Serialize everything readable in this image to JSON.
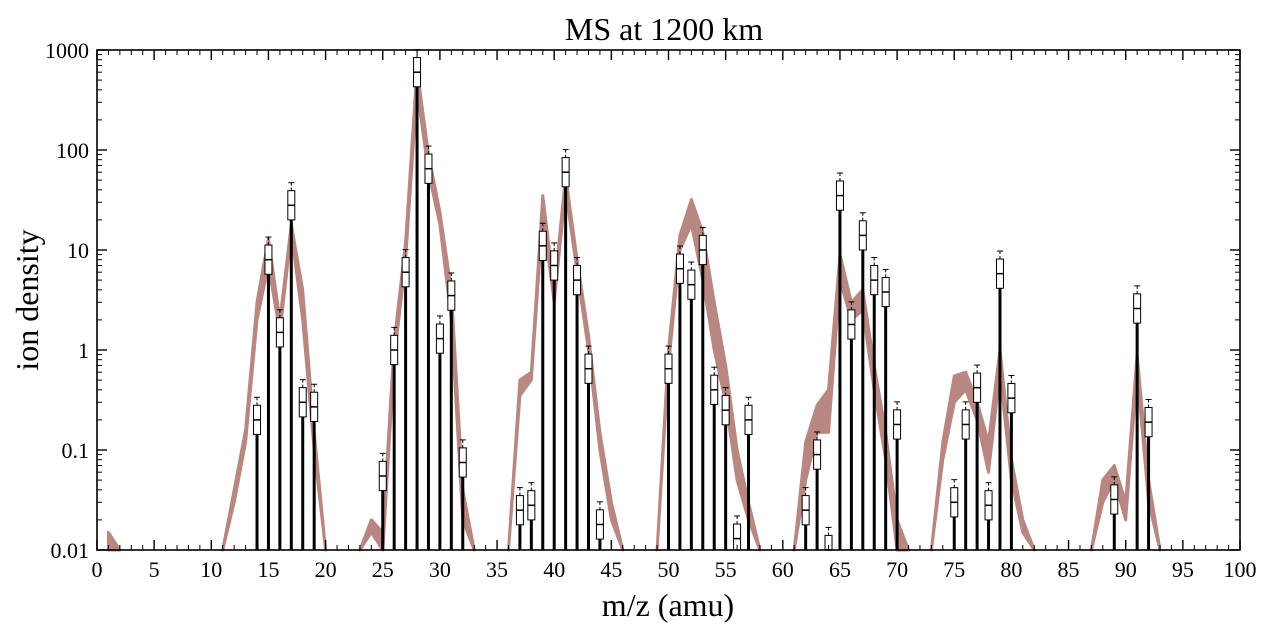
{
  "chart_data": {
    "type": "bar",
    "title": "MS at 1200 km",
    "xlabel": "m/z (amu)",
    "ylabel": "ion density",
    "xlim": [
      0,
      100
    ],
    "ylim": [
      0.01,
      1000
    ],
    "yscale": "log",
    "grid": false,
    "x_ticks": [
      "0",
      "5",
      "10",
      "15",
      "20",
      "25",
      "30",
      "35",
      "40",
      "45",
      "50",
      "55",
      "60",
      "65",
      "70",
      "75",
      "80",
      "85",
      "90",
      "95",
      "100"
    ],
    "y_ticks": [
      "0.01",
      "0.1",
      "1",
      "10",
      "100",
      "1000"
    ],
    "colors": {
      "band": "#b98782",
      "bar": "#000000",
      "box": "#ffffff"
    },
    "series": [
      {
        "kind": "measured",
        "points": [
          {
            "x": 14,
            "y": 0.2
          },
          {
            "x": 15,
            "y": 8
          },
          {
            "x": 16,
            "y": 1.5
          },
          {
            "x": 17,
            "y": 28
          },
          {
            "x": 18,
            "y": 0.3
          },
          {
            "x": 19,
            "y": 0.27
          },
          {
            "x": 25,
            "y": 0.055
          },
          {
            "x": 26,
            "y": 1.0
          },
          {
            "x": 27,
            "y": 6.0
          },
          {
            "x": 28,
            "y": 600
          },
          {
            "x": 29,
            "y": 65
          },
          {
            "x": 30,
            "y": 1.3
          },
          {
            "x": 31,
            "y": 3.5
          },
          {
            "x": 32,
            "y": 0.075
          },
          {
            "x": 37,
            "y": 0.025
          },
          {
            "x": 38,
            "y": 0.028
          },
          {
            "x": 39,
            "y": 11
          },
          {
            "x": 40,
            "y": 7
          },
          {
            "x": 41,
            "y": 60
          },
          {
            "x": 42,
            "y": 5
          },
          {
            "x": 43,
            "y": 0.65
          },
          {
            "x": 44,
            "y": 0.018
          },
          {
            "x": 50,
            "y": 0.65
          },
          {
            "x": 51,
            "y": 6.5
          },
          {
            "x": 52,
            "y": 4.5
          },
          {
            "x": 53,
            "y": 10
          },
          {
            "x": 54,
            "y": 0.4
          },
          {
            "x": 55,
            "y": 0.25
          },
          {
            "x": 56,
            "y": 0.013
          },
          {
            "x": 57,
            "y": 0.2
          },
          {
            "x": 62,
            "y": 0.025
          },
          {
            "x": 63,
            "y": 0.09
          },
          {
            "x": 64,
            "y": 0.01
          },
          {
            "x": 65,
            "y": 35
          },
          {
            "x": 66,
            "y": 1.8
          },
          {
            "x": 67,
            "y": 14
          },
          {
            "x": 68,
            "y": 5
          },
          {
            "x": 69,
            "y": 3.8
          },
          {
            "x": 70,
            "y": 0.18
          },
          {
            "x": 75,
            "y": 0.03
          },
          {
            "x": 76,
            "y": 0.18
          },
          {
            "x": 77,
            "y": 0.42
          },
          {
            "x": 78,
            "y": 0.028
          },
          {
            "x": 79,
            "y": 5.8
          },
          {
            "x": 80,
            "y": 0.33
          },
          {
            "x": 89,
            "y": 0.032
          },
          {
            "x": 91,
            "y": 2.6
          },
          {
            "x": 92,
            "y": 0.19
          }
        ]
      },
      {
        "kind": "model-band",
        "groups": [
          {
            "x": [
              1,
              2
            ],
            "lo": [
              0.01,
              0.01
            ],
            "hi": [
              0.015,
              0.01
            ]
          },
          {
            "x": [
              11,
              12,
              13,
              14,
              15,
              16,
              17,
              18,
              19,
              20
            ],
            "lo": [
              0.01,
              0.03,
              0.12,
              2.0,
              7.0,
              1.5,
              15,
              2.0,
              0.1,
              0.01
            ],
            "hi": [
              0.01,
              0.04,
              0.16,
              3.0,
              13,
              2.0,
              18,
              4.0,
              0.15,
              0.01
            ]
          },
          {
            "x": [
              23,
              24,
              25,
              26,
              27,
              28,
              29,
              30,
              31,
              32,
              33
            ],
            "lo": [
              0.01,
              0.015,
              0.01,
              0.8,
              8,
              400,
              60,
              18,
              2,
              0.02,
              0.01
            ],
            "hi": [
              0.01,
              0.02,
              0.015,
              1.2,
              12,
              650,
              90,
              24,
              4,
              0.04,
              0.01
            ]
          },
          {
            "x": [
              36,
              37,
              38,
              39,
              40,
              41,
              42,
              43,
              44,
              45,
              46
            ],
            "lo": [
              0.01,
              0.35,
              0.5,
              22,
              3,
              40,
              6,
              1.0,
              0.1,
              0.02,
              0.01
            ],
            "hi": [
              0.01,
              0.5,
              0.6,
              35,
              4,
              55,
              8,
              1.4,
              0.15,
              0.03,
              0.01
            ]
          },
          {
            "x": [
              49,
              50,
              51,
              52,
              53,
              54,
              55,
              56,
              57,
              58
            ],
            "lo": [
              0.01,
              0.7,
              10,
              18,
              5,
              1.0,
              0.3,
              0.05,
              0.02,
              0.01
            ],
            "hi": [
              0.01,
              1.0,
              14,
              32,
              15,
              3.0,
              0.7,
              0.1,
              0.03,
              0.01
            ]
          },
          {
            "x": [
              61,
              62,
              63,
              64,
              65,
              66,
              67,
              68,
              69,
              70,
              71
            ],
            "lo": [
              0.01,
              0.05,
              0.15,
              0.15,
              5,
              2,
              2.5,
              0.4,
              0.08,
              0.01,
              0.01
            ],
            "hi": [
              0.01,
              0.12,
              0.28,
              0.4,
              9,
              3,
              4,
              0.7,
              0.15,
              0.02,
              0.01
            ]
          },
          {
            "x": [
              73,
              74,
              75,
              76,
              77,
              78,
              79,
              80,
              81,
              82
            ],
            "lo": [
              0.01,
              0.08,
              0.3,
              0.4,
              0.2,
              0.06,
              0.6,
              0.05,
              0.015,
              0.01
            ],
            "hi": [
              0.01,
              0.12,
              0.55,
              0.6,
              0.3,
              0.12,
              1.0,
              0.08,
              0.02,
              0.01
            ]
          },
          {
            "x": [
              87,
              88,
              89,
              90,
              91,
              92,
              93
            ],
            "lo": [
              0.01,
              0.03,
              0.05,
              0.02,
              0.6,
              0.03,
              0.01
            ],
            "hi": [
              0.01,
              0.05,
              0.07,
              0.03,
              0.9,
              0.05,
              0.01
            ]
          }
        ]
      }
    ]
  }
}
